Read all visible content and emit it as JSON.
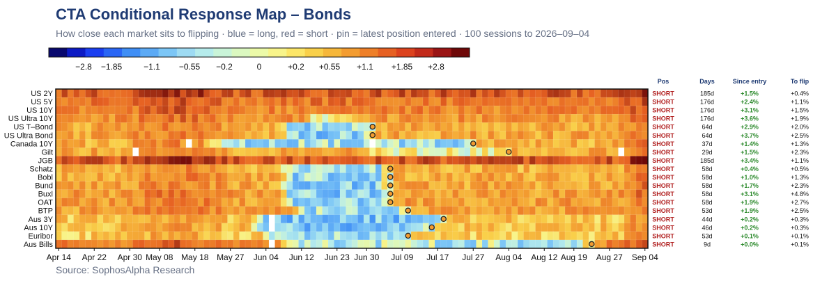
{
  "header": {
    "title": "CTA Conditional Response Map – Bonds",
    "subtitle": "How close each market sits to flipping  ·  blue = long, red = short  ·  pin = latest position entered  ·  100 sessions to 2026–09–04"
  },
  "footer": {
    "source": "Source: SophosAlpha Research"
  },
  "legend": {
    "tick_labels": [
      "−2.8",
      "−1.85",
      "−1.1",
      "−0.55",
      "−0.2",
      "0",
      "+0.2",
      "+0.55",
      "+1.1",
      "+1.85",
      "+2.8"
    ],
    "colors": [
      "#08086e",
      "#0c1ac4",
      "#1a3ef0",
      "#2a66f5",
      "#3f8ef5",
      "#5caaf5",
      "#7cc6f6",
      "#9edbf3",
      "#b6ecec",
      "#c9f4d8",
      "#dbf8c0",
      "#ecfaa8",
      "#f8f48a",
      "#fce668",
      "#f9d04a",
      "#f6b73a",
      "#f39c30",
      "#ee7f28",
      "#e66022",
      "#dc421e",
      "#c22a1a",
      "#9a1414",
      "#6e0808"
    ]
  },
  "table": {
    "headers": [
      "Pos",
      "Days",
      "Since entry",
      "To flip"
    ]
  },
  "chart_data": {
    "type": "heatmap",
    "title": "CTA Conditional Response Map – Bonds",
    "color_scale": {
      "min": -2.8,
      "max": 2.8,
      "negative": "long (blue)",
      "positive": "short (red)"
    },
    "x_tick_labels": [
      "Apr 14",
      "Apr 22",
      "Apr 30",
      "May 08",
      "May 18",
      "May 27",
      "Jun 04",
      "Jun 12",
      "Jun 23",
      "Jun 30",
      "Jul 09",
      "Jul 17",
      "Jul 27",
      "Aug 04",
      "Aug 12",
      "Aug 19",
      "Aug 27",
      "Sep 04"
    ],
    "x_tick_cols": [
      0,
      6,
      12,
      17,
      23,
      29,
      35,
      41,
      47,
      52,
      58,
      64,
      70,
      76,
      82,
      87,
      93,
      99
    ],
    "sessions": 100,
    "end_date": "2026–09–04",
    "rows": [
      {
        "market": "US 2Y",
        "pos": "SHORT",
        "days": "185d",
        "since_entry": "+1.5%",
        "to_flip": "+0.4%",
        "base": 1.9,
        "dip_start": 0,
        "dip_end": 0,
        "dip_depth": 0,
        "pin_col": null,
        "blanks": []
      },
      {
        "market": "US 5Y",
        "pos": "SHORT",
        "days": "176d",
        "since_entry": "+2.4%",
        "to_flip": "+1.1%",
        "base": 1.6,
        "dip_start": 0,
        "dip_end": 0,
        "dip_depth": 0,
        "pin_col": null,
        "blanks": []
      },
      {
        "market": "US 10Y",
        "pos": "SHORT",
        "days": "176d",
        "since_entry": "+3.1%",
        "to_flip": "+1.5%",
        "base": 1.4,
        "dip_start": 0,
        "dip_end": 0,
        "dip_depth": 0,
        "pin_col": null,
        "blanks": []
      },
      {
        "market": "US Ultra 10Y",
        "pos": "SHORT",
        "days": "176d",
        "since_entry": "+3.6%",
        "to_flip": "+1.9%",
        "base": 1.2,
        "dip_start": 44,
        "dip_end": 52,
        "dip_depth": 0.9,
        "pin_col": null,
        "blanks": []
      },
      {
        "market": "US T–Bond",
        "pos": "SHORT",
        "days": "64d",
        "since_entry": "+2.9%",
        "to_flip": "+2.0%",
        "base": 1.0,
        "dip_start": 40,
        "dip_end": 53,
        "dip_depth": 1.4,
        "pin_col": 53,
        "blanks": []
      },
      {
        "market": "US Ultra Bond",
        "pos": "SHORT",
        "days": "64d",
        "since_entry": "+3.7%",
        "to_flip": "+2.5%",
        "base": 1.0,
        "dip_start": 40,
        "dip_end": 53,
        "dip_depth": 1.5,
        "pin_col": 53,
        "blanks": []
      },
      {
        "market": "Canada 10Y",
        "pos": "SHORT",
        "days": "37d",
        "since_entry": "+1.4%",
        "to_flip": "+1.3%",
        "base": 0.9,
        "dip_start": 28,
        "dip_end": 70,
        "dip_depth": 1.2,
        "pin_col": 70,
        "blanks": [
          22,
          53
        ]
      },
      {
        "market": "Gilt",
        "pos": "SHORT",
        "days": "29d",
        "since_entry": "+1.5%",
        "to_flip": "+2.3%",
        "base": 1.0,
        "dip_start": 55,
        "dip_end": 76,
        "dip_depth": 0.8,
        "pin_col": 76,
        "blanks": [
          13,
          95
        ]
      },
      {
        "market": "JGB",
        "pos": "SHORT",
        "days": "185d",
        "since_entry": "+3.4%",
        "to_flip": "+1.1%",
        "base": 1.9,
        "dip_start": 0,
        "dip_end": 0,
        "dip_depth": 0,
        "pin_col": null,
        "blanks": []
      },
      {
        "market": "Schatz",
        "pos": "SHORT",
        "days": "58d",
        "since_entry": "+0.4%",
        "to_flip": "+0.5%",
        "base": 0.9,
        "dip_start": 40,
        "dip_end": 56,
        "dip_depth": 1.2,
        "pin_col": 56,
        "blanks": []
      },
      {
        "market": "Bobl",
        "pos": "SHORT",
        "days": "58d",
        "since_entry": "+1.0%",
        "to_flip": "+1.3%",
        "base": 1.0,
        "dip_start": 40,
        "dip_end": 56,
        "dip_depth": 1.4,
        "pin_col": 56,
        "blanks": []
      },
      {
        "market": "Bund",
        "pos": "SHORT",
        "days": "58d",
        "since_entry": "+1.7%",
        "to_flip": "+2.3%",
        "base": 1.0,
        "dip_start": 40,
        "dip_end": 56,
        "dip_depth": 1.5,
        "pin_col": 56,
        "blanks": []
      },
      {
        "market": "Buxl",
        "pos": "SHORT",
        "days": "58d",
        "since_entry": "+3.1%",
        "to_flip": "+4.8%",
        "base": 1.1,
        "dip_start": 40,
        "dip_end": 56,
        "dip_depth": 1.6,
        "pin_col": 56,
        "blanks": []
      },
      {
        "market": "OAT",
        "pos": "SHORT",
        "days": "58d",
        "since_entry": "+1.9%",
        "to_flip": "+2.7%",
        "base": 1.1,
        "dip_start": 40,
        "dip_end": 56,
        "dip_depth": 1.5,
        "pin_col": 56,
        "blanks": []
      },
      {
        "market": "BTP",
        "pos": "SHORT",
        "days": "53d",
        "since_entry": "+1.9%",
        "to_flip": "+2.5%",
        "base": 1.1,
        "dip_start": 42,
        "dip_end": 59,
        "dip_depth": 1.4,
        "pin_col": 59,
        "blanks": []
      },
      {
        "market": "Aus 3Y",
        "pos": "SHORT",
        "days": "44d",
        "since_entry": "+0.2%",
        "to_flip": "+0.3%",
        "base": 0.7,
        "dip_start": 36,
        "dip_end": 65,
        "dip_depth": 1.3,
        "pin_col": 65,
        "blanks": [
          36
        ]
      },
      {
        "market": "Aus 10Y",
        "pos": "SHORT",
        "days": "46d",
        "since_entry": "+0.2%",
        "to_flip": "+0.3%",
        "base": 0.7,
        "dip_start": 36,
        "dip_end": 63,
        "dip_depth": 1.3,
        "pin_col": 63,
        "blanks": [
          36
        ]
      },
      {
        "market": "Euribor",
        "pos": "SHORT",
        "days": "53d",
        "since_entry": "+0.1%",
        "to_flip": "+0.1%",
        "base": 0.6,
        "dip_start": 38,
        "dip_end": 59,
        "dip_depth": 1.0,
        "pin_col": 59,
        "blanks": []
      },
      {
        "market": "Aus Bills",
        "pos": "SHORT",
        "days": "9d",
        "since_entry": "+0.0%",
        "to_flip": "+0.1%",
        "base": 1.4,
        "dip_start": 40,
        "dip_end": 90,
        "dip_depth": 1.6,
        "pin_col": 90,
        "blanks": [
          36
        ]
      }
    ]
  }
}
